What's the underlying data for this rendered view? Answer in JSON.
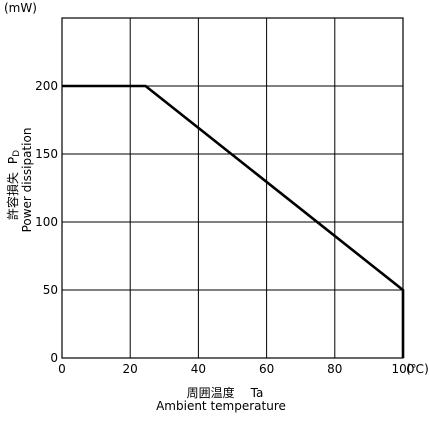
{
  "chart_data": {
    "type": "line",
    "title": "",
    "y_unit": "(mW)",
    "x_unit": "(℃)",
    "xlabel_ja": "周囲温度",
    "xlabel_symbol": "Ta",
    "xlabel_en": "Ambient temperature",
    "ylabel_ja": "許容損失",
    "ylabel_symbol": "PD",
    "ylabel_en": "Power dissipation",
    "xlim": [
      0,
      100
    ],
    "ylim": [
      0,
      250
    ],
    "x_ticks": [
      0,
      20,
      40,
      60,
      80,
      100
    ],
    "y_ticks": [
      0,
      50,
      100,
      150,
      200
    ],
    "x_tick_labels": [
      "0",
      "20",
      "40",
      "60",
      "80",
      "100"
    ],
    "y_tick_labels": [
      "0",
      "50",
      "100",
      "150",
      "200"
    ],
    "grid": true,
    "series": [
      {
        "x": [
          0,
          24.5,
          100,
          100
        ],
        "y": [
          200,
          200,
          50,
          0
        ]
      }
    ]
  }
}
